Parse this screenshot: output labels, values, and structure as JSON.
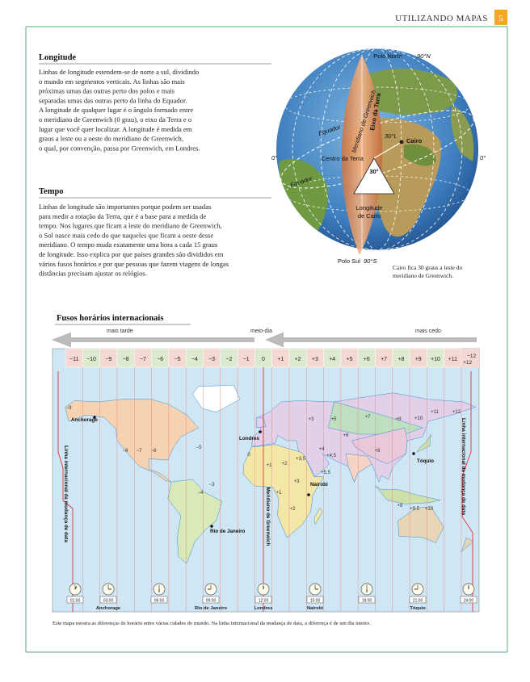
{
  "header": {
    "section": "UTILIZANDO MAPAS",
    "page": "5"
  },
  "longitude": {
    "title": "Longitude",
    "lines": [
      "Linhas de longitude estendem-se de norte a sul, dividindo",
      "o mundo em segmentos verticais. As linhas são mais",
      "próximas umas das outras perto dos polos e mais",
      "separadas umas das outras perto da linha do Equador.",
      "A longitude de qualquer lugar é o ângulo formado entre",
      "o meridiano de Greenwich (0 grau), o eixo da Terra e o",
      "lugar que você quer localizar. A longitude é medida em",
      "graus a leste ou a oeste do meridiano de Greenwich,",
      "o qual, por convenção, passa por Greenwich, em Londres."
    ]
  },
  "tempo": {
    "title": "Tempo",
    "lines": [
      "Linhas de longitude são importantes porque podem ser usadas",
      "para medir a rotação da Terra, que é a base para a medida de",
      "tempo. Nos lugares que ficam a leste do meridiano de Greenwich,",
      "o Sol nasce mais cedo do que naqueles que ficam a oeste desse",
      "meridiano. O tempo muda exatamente uma hora a cada 15 graus",
      "de longitude. Isso explica por que países grandes são divididos em",
      "vários fusos horários e por que pessoas que fazem viagens de longas",
      "distâncias precisam ajustar os relógios."
    ]
  },
  "globe": {
    "north_pole": "Polo Norte",
    "north_lat": "90°N",
    "south_pole": "Polo Sul",
    "south_lat": "90°S",
    "left_longitude": "0°",
    "right_longitude": "0°",
    "equator_back": "Equador",
    "equator_front": "Equador",
    "greenwich": "Meridiano de Greenwich",
    "axis": "Eixo da Terra",
    "cairo_longitude": "30°L",
    "cairo": "Cairo",
    "earth_center": "Centro da Terra",
    "angle": "30°",
    "longitude_of_cairo": [
      "Longitude",
      "de Cairo"
    ],
    "caption": [
      "Cairo fica 30 graus a leste do",
      "meridiano de Greenwich."
    ]
  },
  "map": {
    "title": "Fusos horários internacionais",
    "later": "mais tarde",
    "noon": "meio-dia",
    "earlier": "mais cedo",
    "zones": [
      "−11",
      "−10",
      "−9",
      "−8",
      "−7",
      "−6",
      "−5",
      "−4",
      "−3",
      "−2",
      "−1",
      "0",
      "+1",
      "+2",
      "+3",
      "+4",
      "+5",
      "+6",
      "+7",
      "+8",
      "+9",
      "+10",
      "+11"
    ],
    "zone_end": [
      "−12",
      "+12"
    ],
    "zone_labels": [
      "−9",
      "−8",
      "−7",
      "−6",
      "−5",
      "−4",
      "−3",
      "0",
      "+1",
      "+2",
      "+3",
      "+3",
      "+3,5",
      "+4",
      "+4,5",
      "+5",
      "+5,5",
      "+6",
      "+7",
      "+8",
      "+9",
      "+10",
      "+11",
      "+12",
      "+8",
      "+9,5",
      "+10",
      "+2",
      "+1"
    ],
    "cities": {
      "anchorage": "Anchorage",
      "londres": "Londres",
      "nairobi": "Nairobi",
      "rio": "Rio de Janeiro",
      "toquio": "Tóquio"
    },
    "date_line_left": "Linha internacional da mudança de data",
    "date_line_right": "Linha internacional da mudança de data",
    "greenwich": "Meridiano de Greenwich",
    "clocks": [
      {
        "time": "01:00"
      },
      {
        "time": "03:00",
        "city": "Anchorage"
      },
      {
        "time": "06:00"
      },
      {
        "time": "09:00",
        "city": "Rio de Janeiro"
      },
      {
        "time": "12:00",
        "city": "Londres"
      },
      {
        "time": "15:00",
        "city": "Nairobi"
      },
      {
        "time": "18:00"
      },
      {
        "time": "21:00",
        "city": "Tóquio"
      },
      {
        "time": "24:00"
      }
    ],
    "caption": "Este mapa mostra as diferenças de horário entre várias cidades do mundo. Na linha internacional da mudança de data, a diferença é de um dia inteiro."
  }
}
